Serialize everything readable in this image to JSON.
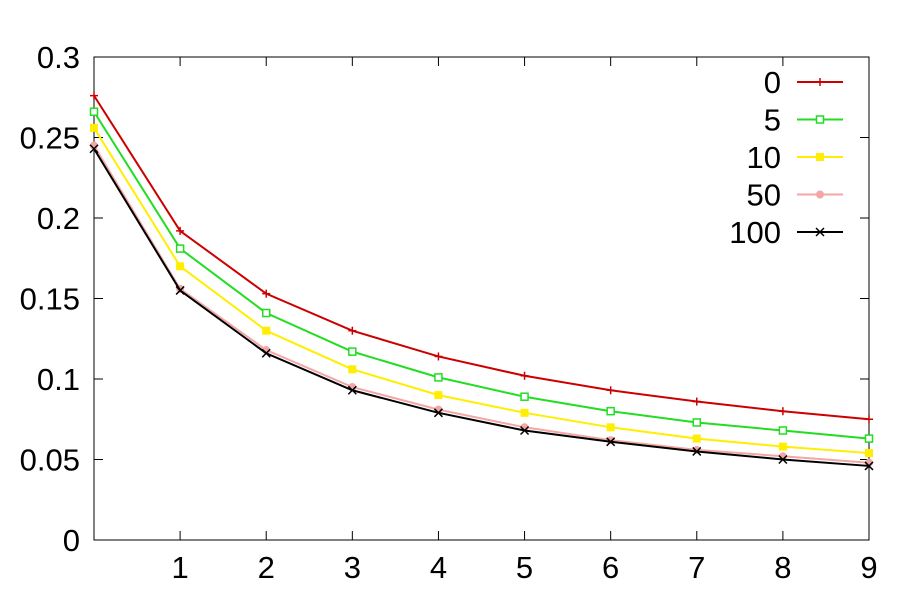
{
  "chart_data": {
    "type": "line",
    "title": "",
    "xlabel": "",
    "ylabel": "",
    "xlim": [
      0,
      9
    ],
    "ylim": [
      0,
      0.3
    ],
    "x": [
      0,
      1,
      2,
      3,
      4,
      5,
      6,
      7,
      8,
      9
    ],
    "x_tick_labels": [
      "1",
      "2",
      "3",
      "4",
      "5",
      "6",
      "7",
      "8",
      "9"
    ],
    "y_tick_labels": [
      "0",
      "0.05",
      "0.1",
      "0.15",
      "0.2",
      "0.25",
      "0.3"
    ],
    "grid": false,
    "legend_position": "top-right",
    "series": [
      {
        "name": "0",
        "color": "#cc0000",
        "marker": "plus",
        "values": [
          0.276,
          0.192,
          0.153,
          0.13,
          0.114,
          0.102,
          0.093,
          0.086,
          0.08,
          0.075
        ]
      },
      {
        "name": "5",
        "color": "#22dd22",
        "marker": "open-square",
        "values": [
          0.266,
          0.181,
          0.141,
          0.117,
          0.101,
          0.089,
          0.08,
          0.073,
          0.068,
          0.063
        ]
      },
      {
        "name": "10",
        "color": "#ffee00",
        "marker": "filled-square",
        "values": [
          0.256,
          0.17,
          0.13,
          0.106,
          0.09,
          0.079,
          0.07,
          0.063,
          0.058,
          0.054
        ]
      },
      {
        "name": "50",
        "color": "#f4a6a6",
        "marker": "filled-circle",
        "values": [
          0.245,
          0.156,
          0.118,
          0.095,
          0.081,
          0.07,
          0.062,
          0.056,
          0.052,
          0.048
        ]
      },
      {
        "name": "100",
        "color": "#000000",
        "marker": "cross",
        "values": [
          0.243,
          0.155,
          0.116,
          0.093,
          0.079,
          0.068,
          0.061,
          0.055,
          0.05,
          0.046
        ]
      }
    ]
  }
}
